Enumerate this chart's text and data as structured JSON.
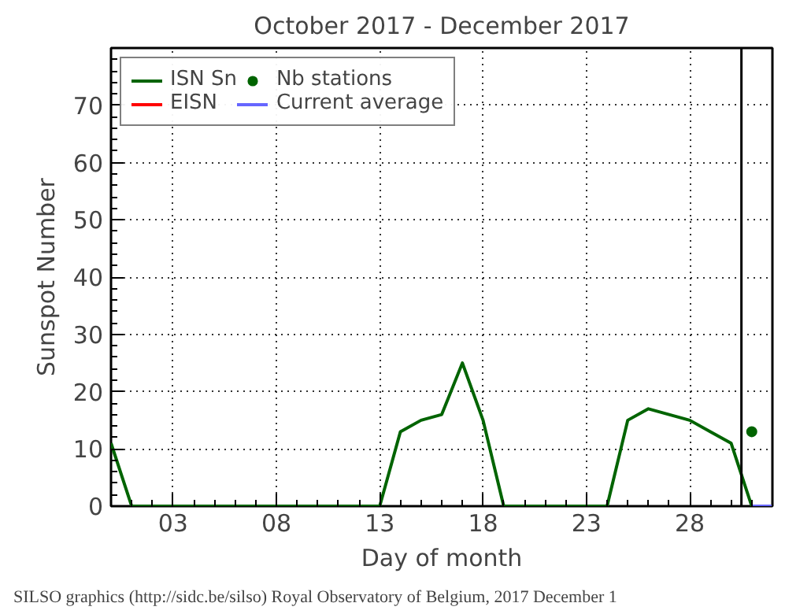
{
  "chart_data": {
    "type": "line",
    "title": "October 2017 - December 2017",
    "xlabel": "Day of month",
    "ylabel": "Sunspot Number",
    "xlim": [
      0,
      32
    ],
    "ylim": [
      0,
      80
    ],
    "xticks": [
      {
        "value": 3,
        "label": "03"
      },
      {
        "value": 8,
        "label": "08"
      },
      {
        "value": 13,
        "label": "13"
      },
      {
        "value": 18,
        "label": "18"
      },
      {
        "value": 23,
        "label": "23"
      },
      {
        "value": 28,
        "label": "28"
      }
    ],
    "yticks": [
      0,
      10,
      20,
      30,
      40,
      50,
      60,
      70
    ],
    "grid": true,
    "legend": "top left",
    "line_style": "solid",
    "series": [
      {
        "name": "ISN Sn",
        "color": "#006400",
        "marker": "none",
        "x": [
          0,
          1,
          2,
          3,
          4,
          5,
          6,
          7,
          8,
          9,
          10,
          11,
          12,
          13,
          14,
          15,
          16,
          17,
          18,
          19,
          20,
          21,
          22,
          23,
          24,
          25,
          26,
          27,
          28,
          29,
          30,
          31
        ],
        "values": [
          11,
          0,
          0,
          0,
          0,
          0,
          0,
          0,
          0,
          0,
          0,
          0,
          0,
          0,
          13,
          15,
          16,
          25,
          15,
          0,
          0,
          0,
          0,
          0,
          0,
          15,
          17,
          16,
          15,
          13,
          11,
          0
        ]
      },
      {
        "name": "EISN",
        "color": "#ff0000",
        "marker": "none"
      },
      {
        "name": "Nb stations",
        "type": "scatter",
        "color": "#006400",
        "marker": "circle",
        "x": [
          31
        ],
        "values": [
          13
        ]
      },
      {
        "name": "Current average",
        "color": "#6666ff",
        "marker": "none",
        "x": [
          31,
          32
        ],
        "values": [
          0,
          0
        ]
      }
    ],
    "ref_lines": [
      {
        "axis": "x",
        "value": 30.5,
        "color": "#000000",
        "line_style": "solid"
      }
    ],
    "annotations": [
      "SILSO graphics (http://sidc.be/silso) Royal Observatory of Belgium, 2017 December 1"
    ]
  }
}
